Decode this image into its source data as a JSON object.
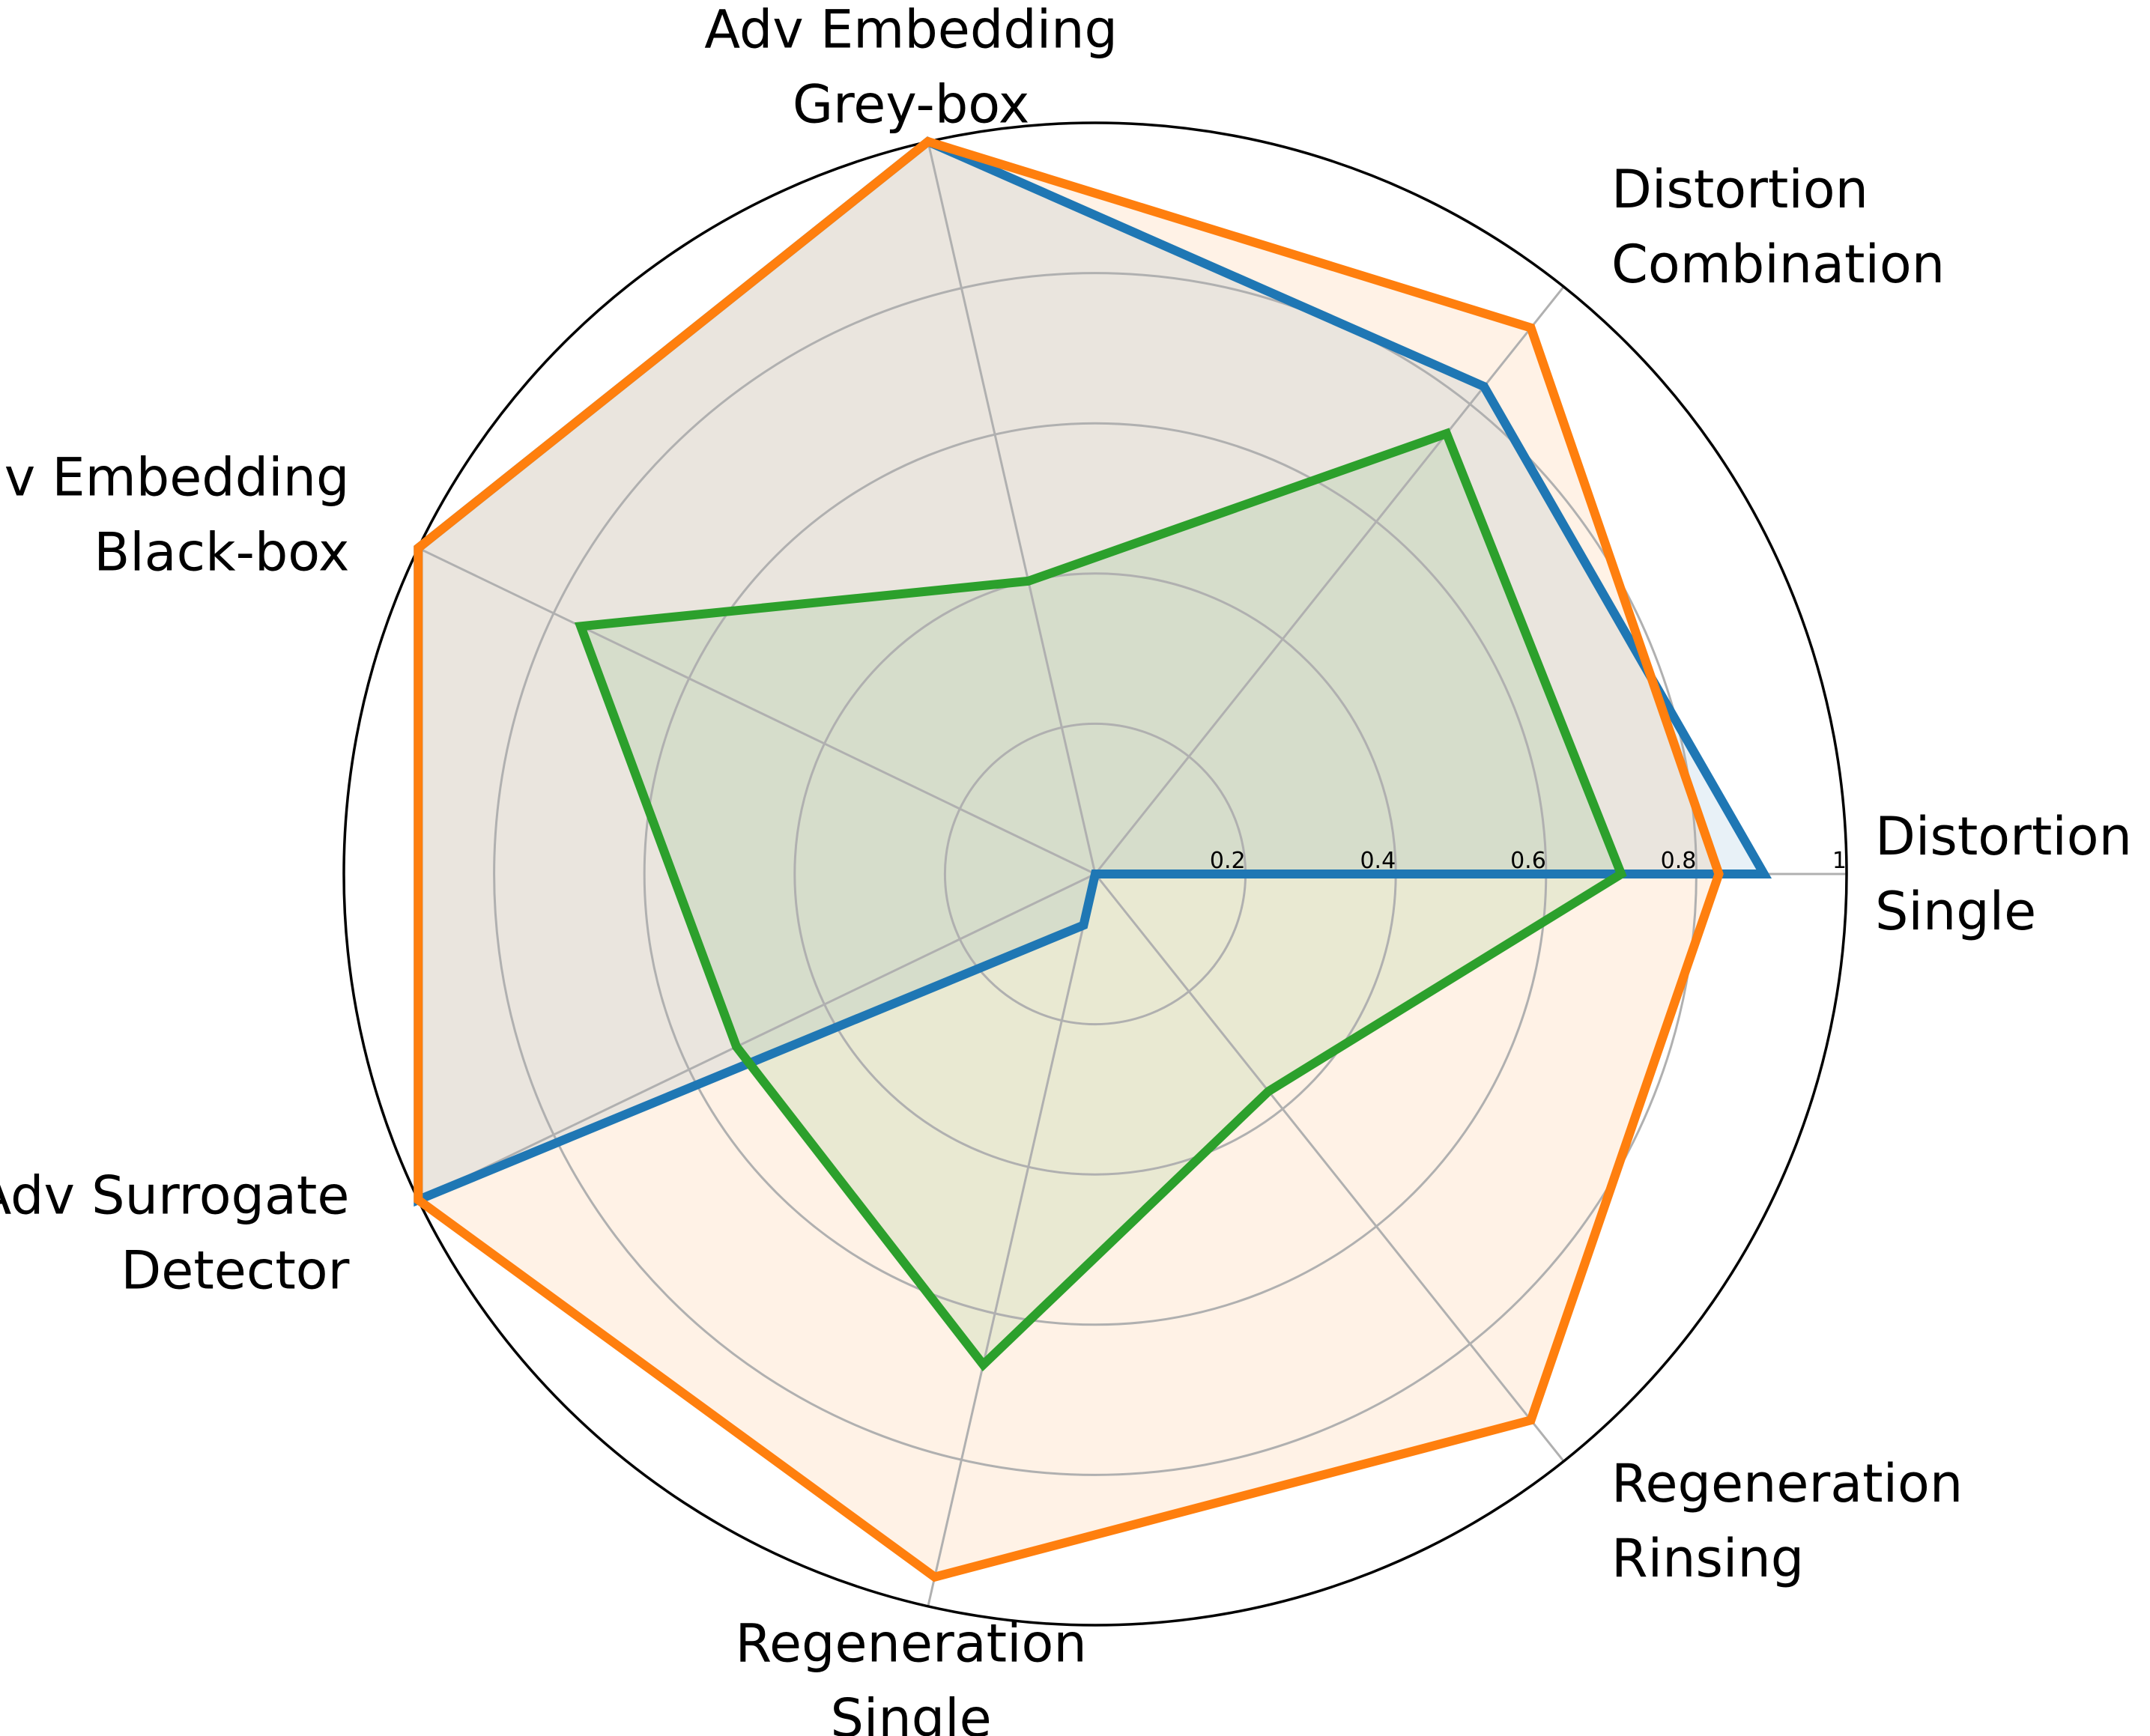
{
  "chart_data": {
    "type": "radar",
    "title": "",
    "categories": [
      [
        "Distortion",
        "Single"
      ],
      [
        "Distortion",
        "Combination"
      ],
      [
        "Adv Embedding",
        "Grey-box"
      ],
      [
        "Adv Embedding",
        "Black-box"
      ],
      [
        "Adv Surrogate",
        "Detector"
      ],
      [
        "Regeneration",
        "Single"
      ],
      [
        "Regeneration",
        "Rinsing"
      ]
    ],
    "radial_ticks": [
      "0.2",
      "0.4",
      "0.6",
      "0.8",
      "1"
    ],
    "radial_tick_values": [
      0.2,
      0.4,
      0.6,
      0.8,
      1.0
    ],
    "rlim": [
      0,
      1
    ],
    "grid": true,
    "series": [
      {
        "values": [
          0.89,
          0.83,
          1.0,
          1.0,
          1.0,
          0.07,
          0.0
        ],
        "color": "#1f77b4",
        "fill_opacity": 0.1
      },
      {
        "values": [
          0.83,
          0.93,
          1.0,
          1.0,
          1.0,
          0.96,
          0.93
        ],
        "color": "#ff7f0e",
        "fill_opacity": 0.1
      },
      {
        "values": [
          0.7,
          0.75,
          0.4,
          0.76,
          0.53,
          0.67,
          0.37
        ],
        "color": "#2ca02c",
        "fill_opacity": 0.1
      }
    ]
  }
}
